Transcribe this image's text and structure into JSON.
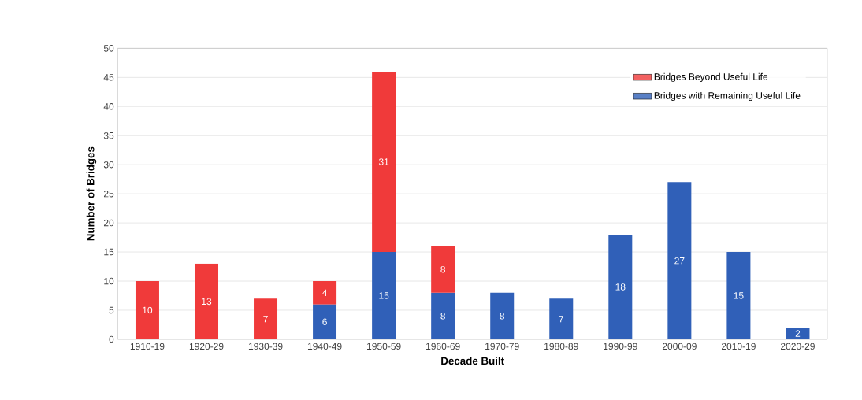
{
  "chart_data": {
    "type": "bar",
    "stacked": true,
    "xlabel": "Decade Built",
    "ylabel": "Number of Bridges",
    "categories": [
      "1910-19",
      "1920-29",
      "1930-39",
      "1940-49",
      "1950-59",
      "1960-69",
      "1970-79",
      "1980-89",
      "1990-99",
      "2000-09",
      "2010-19",
      "2020-29"
    ],
    "series": [
      {
        "name": "Bridges with Remaining Useful Life",
        "color": "#3060b8",
        "values": [
          null,
          null,
          null,
          6,
          15,
          8,
          8,
          7,
          18,
          27,
          15,
          2
        ]
      },
      {
        "name": "Bridges Beyond Useful Life",
        "color": "#f03a3a",
        "values": [
          10,
          13,
          7,
          4,
          31,
          8,
          null,
          null,
          null,
          null,
          null,
          null
        ]
      }
    ],
    "ylim": [
      0,
      50
    ],
    "yticks": [
      0,
      5,
      10,
      15,
      20,
      25,
      30,
      35,
      40,
      45,
      50
    ],
    "grid": "y",
    "legend": "top right",
    "data_labels": true
  }
}
